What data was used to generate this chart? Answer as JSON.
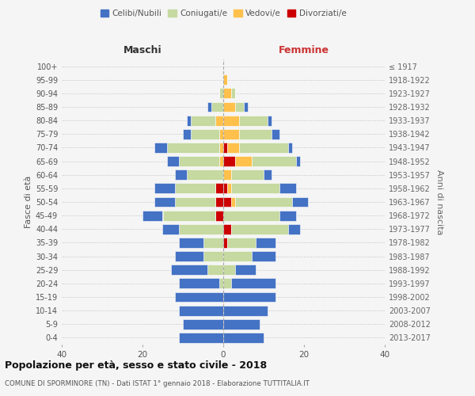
{
  "age_groups": [
    "0-4",
    "5-9",
    "10-14",
    "15-19",
    "20-24",
    "25-29",
    "30-34",
    "35-39",
    "40-44",
    "45-49",
    "50-54",
    "55-59",
    "60-64",
    "65-69",
    "70-74",
    "75-79",
    "80-84",
    "85-89",
    "90-94",
    "95-99",
    "100+"
  ],
  "birth_years": [
    "2013-2017",
    "2008-2012",
    "2003-2007",
    "1998-2002",
    "1993-1997",
    "1988-1992",
    "1983-1987",
    "1978-1982",
    "1973-1977",
    "1968-1972",
    "1963-1967",
    "1958-1962",
    "1953-1957",
    "1948-1952",
    "1943-1947",
    "1938-1942",
    "1933-1937",
    "1928-1932",
    "1923-1927",
    "1918-1922",
    "≤ 1917"
  ],
  "colors": {
    "celibe": "#4472c4",
    "coniugato": "#c5d9a0",
    "vedovo": "#ffc04c",
    "divorziato": "#cc0000"
  },
  "maschi": {
    "celibe": [
      11,
      10,
      11,
      12,
      10,
      9,
      7,
      6,
      4,
      5,
      5,
      5,
      3,
      3,
      3,
      2,
      1,
      1,
      0,
      0,
      0
    ],
    "coniugato": [
      0,
      0,
      0,
      0,
      1,
      4,
      5,
      5,
      11,
      13,
      10,
      10,
      9,
      10,
      13,
      7,
      6,
      3,
      1,
      0,
      0
    ],
    "vedovo": [
      0,
      0,
      0,
      0,
      0,
      0,
      0,
      0,
      0,
      0,
      0,
      0,
      0,
      1,
      1,
      1,
      2,
      0,
      0,
      0,
      0
    ],
    "divorziato": [
      0,
      0,
      0,
      0,
      0,
      0,
      0,
      0,
      0,
      2,
      2,
      2,
      0,
      0,
      0,
      0,
      0,
      0,
      0,
      0,
      0
    ]
  },
  "femmine": {
    "nubile": [
      10,
      9,
      11,
      13,
      11,
      5,
      6,
      5,
      3,
      4,
      4,
      4,
      2,
      1,
      1,
      2,
      1,
      1,
      0,
      0,
      0
    ],
    "coniugata": [
      0,
      0,
      0,
      0,
      2,
      3,
      7,
      7,
      14,
      14,
      14,
      12,
      8,
      11,
      12,
      8,
      7,
      2,
      1,
      0,
      0
    ],
    "vedova": [
      0,
      0,
      0,
      0,
      0,
      0,
      0,
      0,
      0,
      0,
      1,
      1,
      2,
      4,
      3,
      4,
      4,
      3,
      2,
      1,
      0
    ],
    "divorziata": [
      0,
      0,
      0,
      0,
      0,
      0,
      0,
      1,
      2,
      0,
      2,
      1,
      0,
      3,
      1,
      0,
      0,
      0,
      0,
      0,
      0
    ]
  },
  "title": "Popolazione per età, sesso e stato civile - 2018",
  "subtitle": "COMUNE DI SPORMINORE (TN) - Dati ISTAT 1° gennaio 2018 - Elaborazione TUTTITALIA.IT",
  "ylabel_left": "Fasce di età",
  "ylabel_right": "Anni di nascita",
  "xlabel_maschi": "Maschi",
  "xlabel_femmine": "Femmine",
  "xlim": 40,
  "bg_color": "#f5f5f5",
  "grid_color": "#cccccc",
  "legend_labels": [
    "Celibi/Nubili",
    "Coniugati/e",
    "Vedovi/e",
    "Divorziati/e"
  ]
}
